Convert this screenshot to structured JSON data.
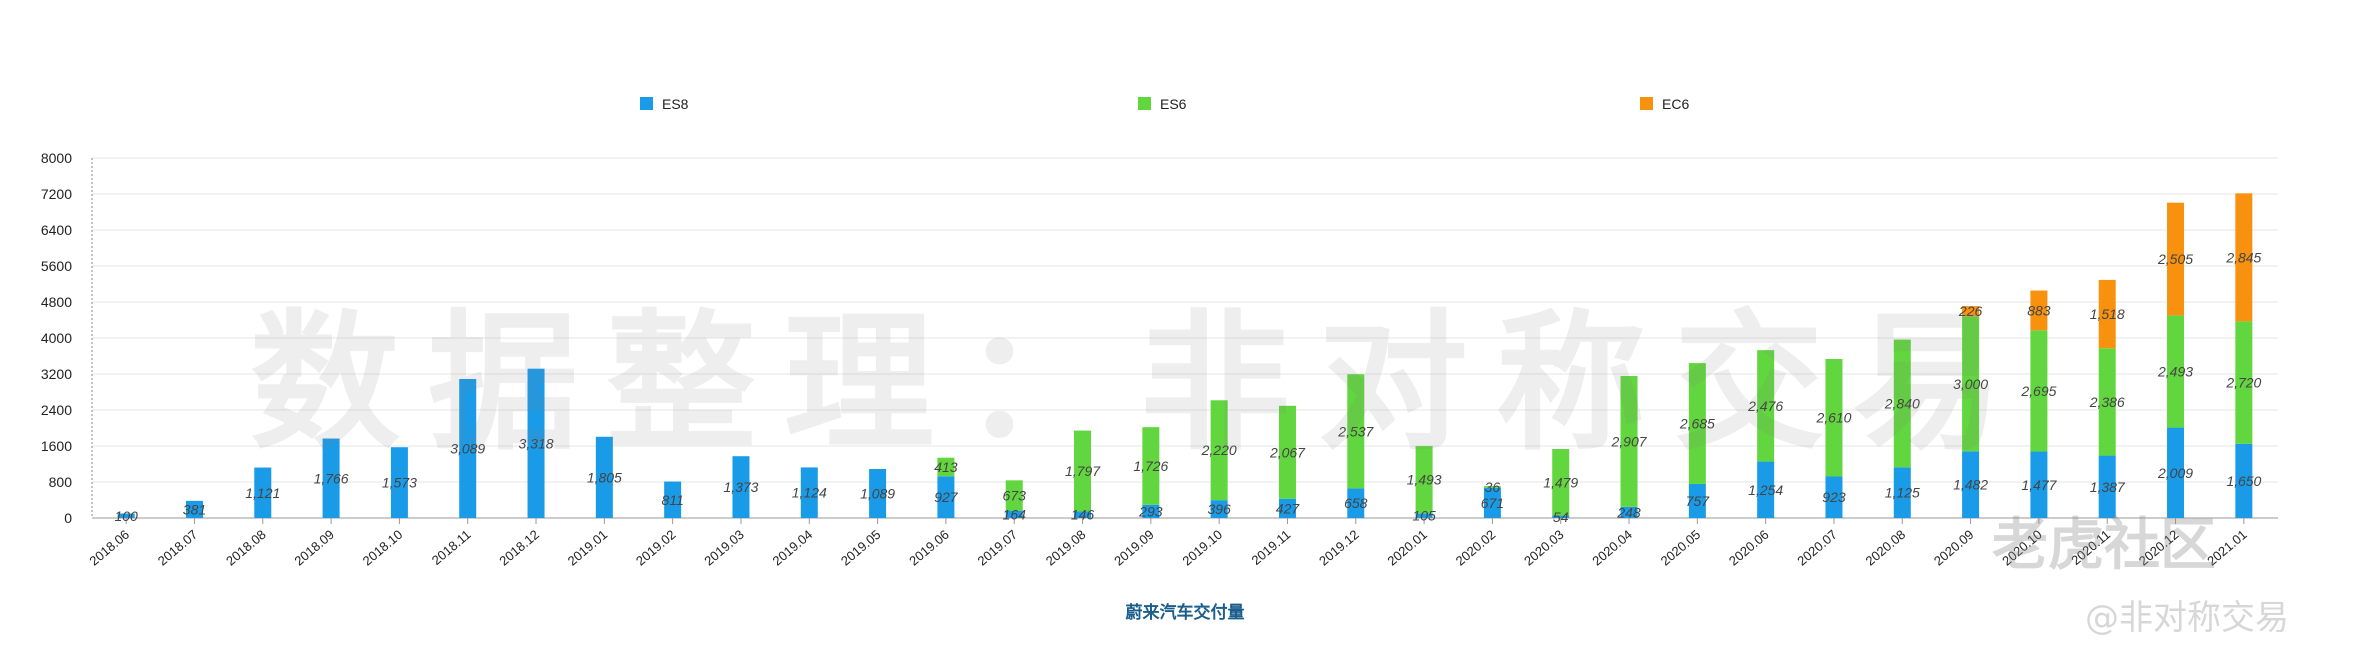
{
  "chart_data": {
    "type": "bar",
    "stacked": true,
    "title": "",
    "xlabel": "蔚来汽车交付量",
    "ylabel": "",
    "ylim": [
      0,
      8000
    ],
    "yticks": [
      0,
      800,
      1600,
      2400,
      3200,
      4000,
      4800,
      5600,
      6400,
      7200,
      8000
    ],
    "grid": true,
    "legend": "top",
    "categories": [
      "2018.06",
      "2018.07",
      "2018.08",
      "2018.09",
      "2018.10",
      "2018.11",
      "2018.12",
      "2019.01",
      "2019.02",
      "2019.03",
      "2019.04",
      "2019.05",
      "2019.06",
      "2019.07",
      "2019.08",
      "2019.09",
      "2019.10",
      "2019.11",
      "2019.12",
      "2020.01",
      "2020.02",
      "2020.03",
      "2020.04",
      "2020.05",
      "2020.06",
      "2020.07",
      "2020.08",
      "2020.09",
      "2020.10",
      "2020.11",
      "2020.12",
      "2021.01"
    ],
    "series": [
      {
        "name": "ES8",
        "color": "#1a9be8",
        "values": [
          100,
          381,
          1121,
          1766,
          1573,
          3089,
          3318,
          1805,
          811,
          1373,
          1124,
          1089,
          927,
          164,
          146,
          293,
          396,
          427,
          658,
          105,
          671,
          54,
          248,
          757,
          1254,
          923,
          1125,
          1482,
          1477,
          1387,
          2009,
          1650
        ]
      },
      {
        "name": "ES6",
        "color": "#62d63f",
        "values": [
          null,
          null,
          null,
          null,
          null,
          null,
          null,
          null,
          null,
          null,
          null,
          null,
          413,
          673,
          1797,
          1726,
          2220,
          2067,
          2537,
          1493,
          36,
          1479,
          2907,
          2685,
          2476,
          2610,
          2840,
          3000,
          2695,
          2386,
          2493,
          2720
        ]
      },
      {
        "name": "EC6",
        "color": "#f7910e",
        "values": [
          null,
          null,
          null,
          null,
          null,
          null,
          null,
          null,
          null,
          null,
          null,
          null,
          null,
          null,
          null,
          null,
          null,
          null,
          null,
          null,
          null,
          null,
          null,
          null,
          null,
          null,
          null,
          226,
          883,
          1518,
          2505,
          2845
        ]
      }
    ],
    "label_text": {
      "ES8": [
        "100",
        "381",
        "1,121",
        "1,766",
        "1,573",
        "3,089",
        "3,318",
        "1,805",
        "811",
        "1,373",
        "1,124",
        "1,089",
        "927",
        "164",
        "146",
        "293",
        "396",
        "427",
        "658",
        "105",
        "671",
        "54",
        "248",
        "757",
        "1,254",
        "923",
        "1,125",
        "1,482",
        "1,477",
        "1,387",
        "2,009",
        "1,650"
      ],
      "ES6": [
        "",
        "",
        "",
        "",
        "",
        "",
        "",
        "",
        "",
        "",
        "",
        "",
        "413",
        "673",
        "1,797",
        "1,726",
        "2,220",
        "2,067",
        "2,537",
        "1,493",
        "36",
        "1,479",
        "2,907",
        "2,685",
        "2,476",
        "2,610",
        "2,840",
        "3,000",
        "2,695",
        "2,386",
        "2,493",
        "2,720"
      ],
      "EC6": [
        "",
        "",
        "",
        "",
        "",
        "",
        "",
        "",
        "",
        "",
        "",
        "",
        "",
        "",
        "",
        "",
        "",
        "",
        "",
        "",
        "",
        "",
        "",
        "",
        "",
        "",
        "",
        "226",
        "883",
        "1,518",
        "2,505",
        "2,845"
      ]
    }
  },
  "watermark": {
    "text": "数据整理：非对称交易",
    "logo": "老虎社区",
    "handle": "@非对称交易"
  }
}
